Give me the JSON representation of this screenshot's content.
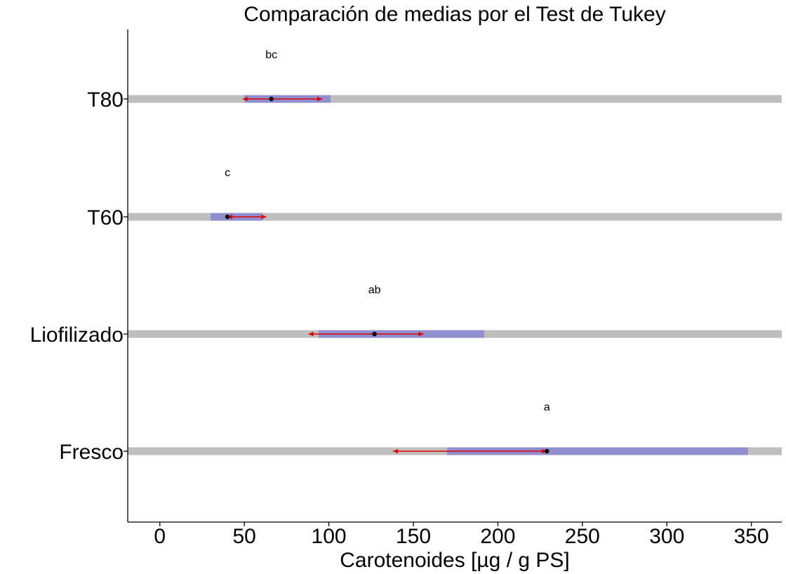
{
  "chart_data": {
    "type": "range",
    "title": "Comparación de medias por el Test de Tukey",
    "xlabel": "Carotenoides [µg / g PS]",
    "ylabel": "",
    "xlim": [
      -19,
      368
    ],
    "xticks": [
      0,
      50,
      100,
      150,
      200,
      250,
      300,
      350
    ],
    "grid": false,
    "categories": [
      "T80",
      "T60",
      "Liofilizado",
      "Fresco"
    ],
    "groups": [
      {
        "label": "T80",
        "mean": 66,
        "range": [
          50,
          101
        ],
        "interval": [
          49,
          96
        ],
        "letter": "bc"
      },
      {
        "label": "T60",
        "mean": 40,
        "range": [
          30,
          61
        ],
        "interval": [
          40,
          63
        ],
        "letter": "c"
      },
      {
        "label": "Liofilizado",
        "mean": 127,
        "range": [
          94,
          192
        ],
        "interval": [
          88,
          156
        ],
        "letter": "ab"
      },
      {
        "label": "Fresco",
        "mean": 229,
        "range": [
          170,
          348
        ],
        "interval": [
          138,
          229
        ],
        "letter": "a"
      }
    ],
    "colors": {
      "track": "#bebebe",
      "range": "#8f8fcf",
      "interval": "#e00000",
      "mean": "#000000"
    }
  }
}
